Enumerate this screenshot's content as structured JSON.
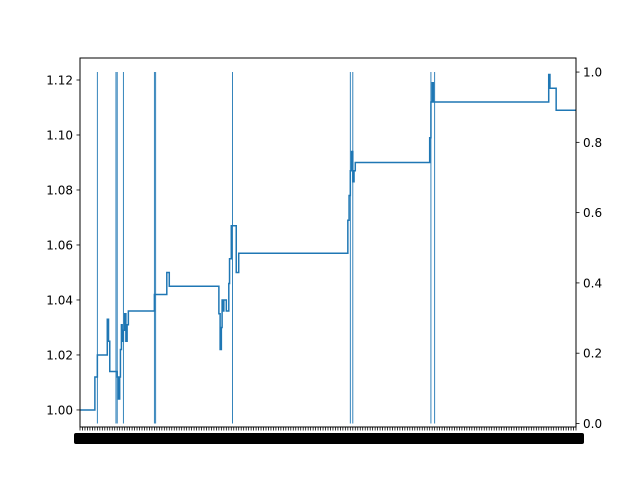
{
  "chart_data": {
    "type": "line",
    "title": "",
    "xlabel": "",
    "ylabel": "",
    "ylabel_right": "",
    "grid": false,
    "legend": "none",
    "ylim": [
      0.9938,
      1.128
    ],
    "ylim_right": [
      -0.01,
      1.04
    ],
    "yticks_left": [
      {
        "value": 1.0,
        "label": "1.00"
      },
      {
        "value": 1.02,
        "label": "1.02"
      },
      {
        "value": 1.04,
        "label": "1.04"
      },
      {
        "value": 1.06,
        "label": "1.06"
      },
      {
        "value": 1.08,
        "label": "1.08"
      },
      {
        "value": 1.1,
        "label": "1.10"
      },
      {
        "value": 1.12,
        "label": "1.12"
      }
    ],
    "yticks_right": [
      {
        "value": 0.0,
        "label": "0.0"
      },
      {
        "value": 0.2,
        "label": "0.2"
      },
      {
        "value": 0.4,
        "label": "0.4"
      },
      {
        "value": 0.6,
        "label": "0.6"
      },
      {
        "value": 0.8,
        "label": "0.8"
      },
      {
        "value": 1.0,
        "label": "1.0"
      }
    ],
    "xlim": [
      0,
      200
    ],
    "x_tick_count": 200,
    "x_ticks_illegible": true,
    "series": [
      {
        "axis": "left",
        "style": "steps",
        "color": "#1f77b4",
        "x": [
          0,
          6,
          7,
          11,
          11.5,
          12,
          15,
          15.5,
          16,
          16.3,
          16.7,
          17,
          17.5,
          18,
          18.5,
          19,
          19.5,
          20,
          21,
          30,
          31,
          35,
          36,
          37,
          56,
          56.5,
          57,
          57.3,
          57.7,
          58,
          59,
          60,
          60.3,
          61,
          62,
          63,
          64,
          108,
          108.5,
          109,
          109.5,
          110,
          110.5,
          111,
          111.5,
          112,
          112.5,
          141,
          141.5,
          142,
          142.5,
          143,
          189,
          189.5,
          190,
          192,
          200
        ],
        "y": [
          1.0,
          1.012,
          1.02,
          1.033,
          1.025,
          1.014,
          1.012,
          1.004,
          1.012,
          1.022,
          1.031,
          1.025,
          1.029,
          1.035,
          1.025,
          1.031,
          1.036,
          1.036,
          1.036,
          1.042,
          1.042,
          1.05,
          1.045,
          1.045,
          1.035,
          1.022,
          1.03,
          1.04,
          1.036,
          1.04,
          1.036,
          1.046,
          1.055,
          1.067,
          1.067,
          1.05,
          1.057,
          1.069,
          1.078,
          1.087,
          1.094,
          1.083,
          1.087,
          1.09,
          1.09,
          1.09,
          1.09,
          1.099,
          1.112,
          1.119,
          1.112,
          1.112,
          1.122,
          1.117,
          1.117,
          1.109,
          1.109
        ]
      },
      {
        "axis": "right",
        "style": "spikes",
        "color": "#1f77b4",
        "x": [
          7,
          14.5,
          15,
          17.5,
          30,
          30.5,
          61.5,
          109,
          110,
          141.5,
          143
        ],
        "y": [
          1,
          1,
          1,
          1,
          1,
          1,
          1,
          1,
          1,
          1,
          1
        ]
      }
    ]
  }
}
